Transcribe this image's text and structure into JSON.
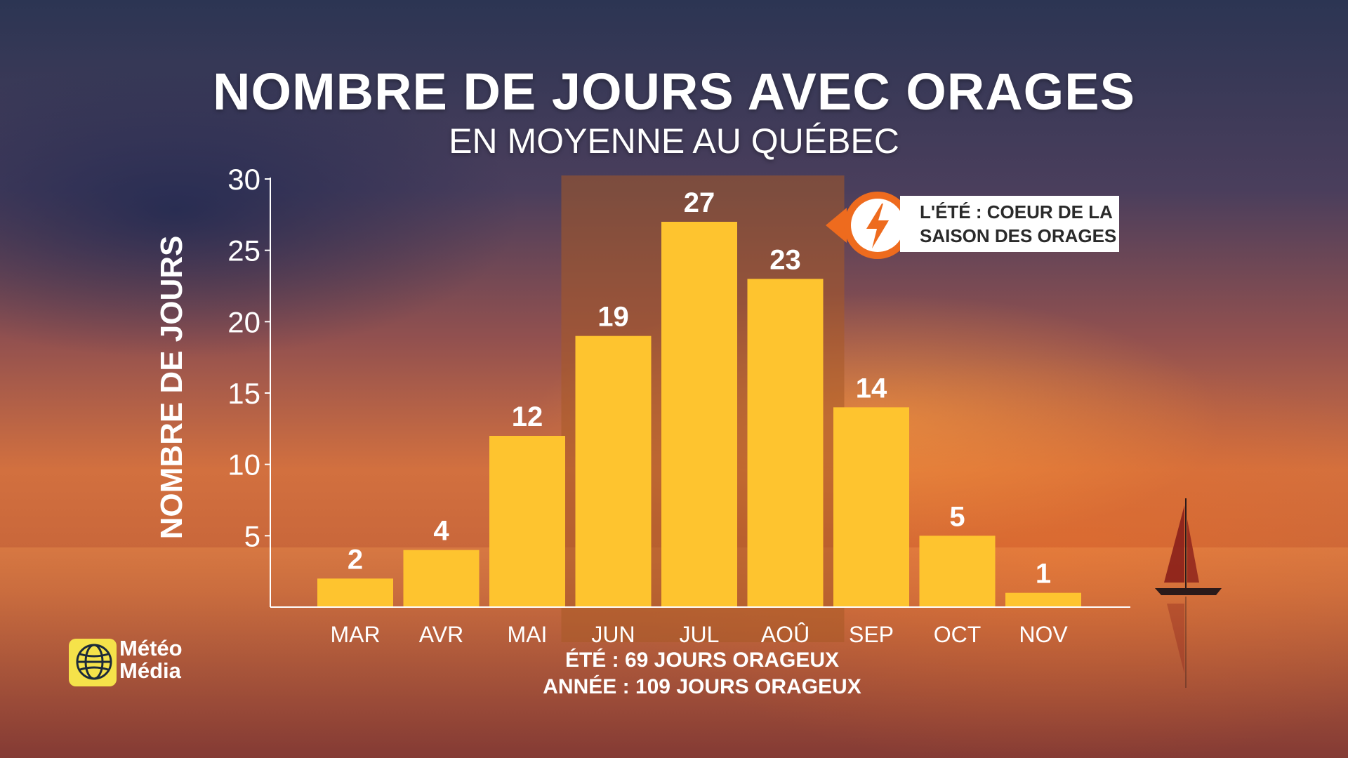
{
  "title": "NOMBRE DE JOURS AVEC ORAGES",
  "subtitle": "EN MOYENNE AU QUÉBEC",
  "callout": {
    "line1": "L'ÉTÉ : COEUR DE LA",
    "line2": "SAISON DES ORAGES",
    "icon": "lightning-bolt-icon",
    "accent_color": "#ee6b1e"
  },
  "summary": {
    "summer": "ÉTÉ : 69 JOURS ORAGEUX",
    "year": "ANNÉE : 109 JOURS ORAGEUX"
  },
  "logo": {
    "line1": "Météo",
    "line2": "Média",
    "icon": "globe-icon",
    "color": "#f5e24a"
  },
  "chart_data": {
    "type": "bar",
    "ylabel": "NOMBRE DE JOURS",
    "xlabel": "",
    "categories": [
      "MAR",
      "AVR",
      "MAI",
      "JUN",
      "JUL",
      "AOÛ",
      "SEP",
      "OCT",
      "NOV"
    ],
    "values": [
      2,
      4,
      12,
      19,
      27,
      23,
      14,
      5,
      1
    ],
    "ylim": [
      0,
      30
    ],
    "yticks": [
      5,
      10,
      15,
      20,
      25,
      30
    ],
    "highlight_categories": [
      "JUN",
      "JUL",
      "AOÛ"
    ],
    "grid": false,
    "bar_color": "#fec42f",
    "highlight_color": "#a85a26"
  }
}
